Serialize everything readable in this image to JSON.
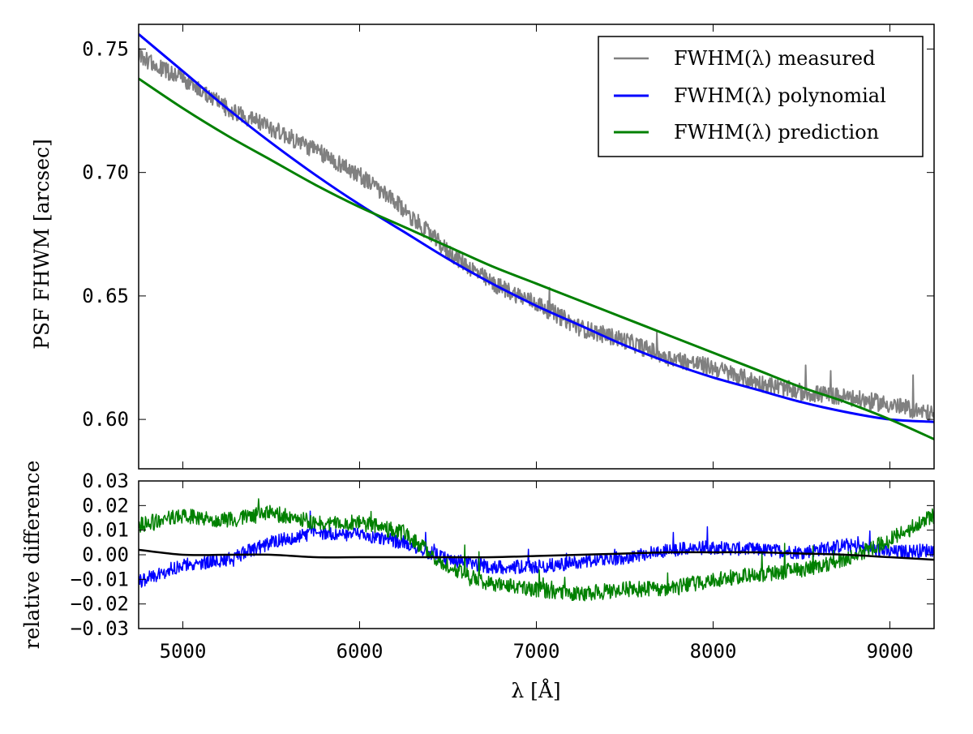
{
  "chart_data": [
    {
      "type": "line",
      "panel": "top",
      "ylabel": "PSF FHWM [arcsec]",
      "xlim": [
        4750,
        9250
      ],
      "ylim": [
        0.58,
        0.76
      ],
      "yticks": [
        0.6,
        0.65,
        0.7,
        0.75
      ],
      "ytick_labels": [
        "0.60",
        "0.65",
        "0.70",
        "0.75"
      ],
      "xticks": [
        5000,
        6000,
        7000,
        8000,
        9000
      ],
      "legend_placement": "top-right",
      "grid": false,
      "x": [
        4750,
        5000,
        5250,
        5500,
        5750,
        6000,
        6250,
        6500,
        6750,
        7000,
        7250,
        7500,
        7750,
        8000,
        8250,
        8500,
        8750,
        9000,
        9250
      ],
      "series": [
        {
          "name": "FWHM(λ) measured",
          "color": "#808080",
          "values": [
            0.747,
            0.738,
            0.726,
            0.718,
            0.709,
            0.699,
            0.685,
            0.668,
            0.655,
            0.647,
            0.637,
            0.632,
            0.625,
            0.621,
            0.615,
            0.611,
            0.609,
            0.606,
            0.602
          ]
        },
        {
          "name": "FWHM(λ) polynomial",
          "color": "#0000ff",
          "values": [
            0.756,
            0.741,
            0.726,
            0.712,
            0.699,
            0.687,
            0.676,
            0.665,
            0.655,
            0.646,
            0.638,
            0.63,
            0.623,
            0.617,
            0.612,
            0.607,
            0.603,
            0.6,
            0.599
          ]
        },
        {
          "name": "FWHM(λ) prediction",
          "color": "#008000",
          "values": [
            0.738,
            0.726,
            0.715,
            0.705,
            0.695,
            0.686,
            0.678,
            0.67,
            0.662,
            0.655,
            0.648,
            0.641,
            0.634,
            0.627,
            0.62,
            0.613,
            0.607,
            0.6,
            0.592
          ]
        }
      ]
    },
    {
      "type": "line",
      "panel": "bottom",
      "xlabel": "λ [Å]",
      "ylabel": "relative difference",
      "xlim": [
        4750,
        9250
      ],
      "ylim": [
        -0.03,
        0.03
      ],
      "yticks": [
        -0.03,
        -0.02,
        -0.01,
        0.0,
        0.01,
        0.02,
        0.03
      ],
      "ytick_labels": [
        "−0.03",
        "−0.02",
        "−0.01",
        "0.00",
        "0.01",
        "0.02",
        "0.03"
      ],
      "xticks": [
        5000,
        6000,
        7000,
        8000,
        9000
      ],
      "xtick_labels": [
        "5000",
        "6000",
        "7000",
        "8000",
        "9000"
      ],
      "grid": false,
      "x": [
        4750,
        5000,
        5250,
        5500,
        5750,
        6000,
        6250,
        6500,
        6750,
        7000,
        7250,
        7500,
        7750,
        8000,
        8250,
        8500,
        8750,
        9000,
        9250
      ],
      "series": [
        {
          "color": "#0000ff",
          "values": [
            -0.011,
            -0.004,
            -0.002,
            0.005,
            0.009,
            0.008,
            0.005,
            -0.002,
            -0.005,
            -0.005,
            -0.003,
            -0.001,
            0.002,
            0.003,
            0.002,
            0.001,
            0.004,
            0.001,
            0.002
          ]
        },
        {
          "color": "#008000",
          "values": [
            0.012,
            0.016,
            0.014,
            0.017,
            0.013,
            0.013,
            0.009,
            -0.005,
            -0.012,
            -0.014,
            -0.016,
            -0.014,
            -0.014,
            -0.01,
            -0.008,
            -0.006,
            -0.002,
            0.006,
            0.016
          ]
        },
        {
          "color": "#000000",
          "values": [
            0.002,
            0.0,
            0.0,
            0.0,
            -0.001,
            -0.001,
            -0.001,
            -0.001,
            -0.001,
            -0.0005,
            0.0,
            0.0005,
            0.001,
            0.001,
            0.001,
            0.0005,
            0.0,
            -0.001,
            -0.002
          ]
        }
      ]
    }
  ]
}
